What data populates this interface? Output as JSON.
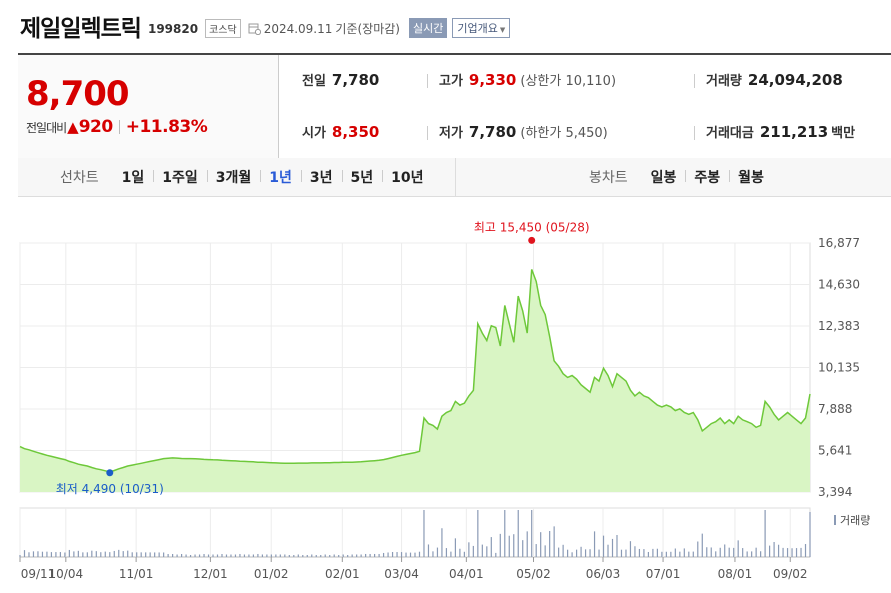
{
  "header": {
    "name": "제일일렉트릭",
    "code": "199820",
    "market": "코스닥",
    "date": "2024.09.11",
    "basis": "기준(장마감)",
    "realtime_label": "실시간",
    "company_label": "기업개요"
  },
  "summary": {
    "price": "8,700",
    "change_label": "전일대비",
    "change_amount": "920",
    "change_pct": "+11.83%",
    "prev_label": "전일",
    "prev_value": "7,780",
    "open_label": "시가",
    "open_value": "8,350",
    "high_label": "고가",
    "high_value": "9,330",
    "upper_limit_note": "(상한가 10,110)",
    "low_label": "저가",
    "low_value": "7,780",
    "lower_limit_note": "(하한가 5,450)",
    "volume_label": "거래량",
    "volume_value": "24,094,208",
    "amount_label": "거래대금",
    "amount_value": "211,213",
    "amount_unit": "백만"
  },
  "tabs": {
    "line_label": "선차트",
    "line_items": [
      "1일",
      "1주일",
      "3개월",
      "1년",
      "3년",
      "5년",
      "10년"
    ],
    "active": "1년",
    "candle_label": "봉차트",
    "candle_items": [
      "일봉",
      "주봉",
      "월봉"
    ]
  },
  "colors": {
    "up": "#d60000",
    "line": "#6ec83a",
    "fill": "#d9f5c4",
    "low": "#1a5cc8",
    "accent": "#2a5bd7"
  },
  "chart_data": {
    "type": "area",
    "y_ticks": [
      "16,877",
      "14,630",
      "12,383",
      "10,135",
      "7,888",
      "5,641",
      "3,394"
    ],
    "ylim": [
      3394,
      16877
    ],
    "x_ticks": [
      "09/11",
      "10/04",
      "11/01",
      "12/01",
      "01/02",
      "02/01",
      "03/04",
      "04/01",
      "05/02",
      "06/03",
      "07/01",
      "08/01",
      "09/02"
    ],
    "high_annotation": "최고 15,450 (05/28)",
    "low_annotation": "최저 4,490 (10/31)",
    "volume_label": "거래량",
    "series": [
      {
        "values": [
          5850,
          5740,
          5680,
          5600,
          5520,
          5450,
          5380,
          5320,
          5260,
          5200,
          5150,
          5050,
          4980,
          4900,
          4850,
          4800,
          4720,
          4650,
          4600,
          4540,
          4490,
          4560,
          4650,
          4720,
          4800,
          4850,
          4900,
          4950,
          5000,
          5050,
          5100,
          5150,
          5200,
          5220,
          5240,
          5230,
          5210,
          5200,
          5200,
          5190,
          5180,
          5160,
          5150,
          5140,
          5130,
          5110,
          5100,
          5090,
          5080,
          5060,
          5050,
          5040,
          5030,
          5010,
          5000,
          4990,
          4980,
          4970,
          4960,
          4950,
          4950,
          4950,
          4960,
          4960,
          4960,
          4970,
          4970,
          4970,
          4980,
          4980,
          4990,
          4990,
          5000,
          5000,
          5010,
          5020,
          5030,
          5050,
          5070,
          5090,
          5110,
          5150,
          5200,
          5260,
          5320,
          5380,
          5430,
          5480,
          5530,
          5600,
          7400,
          7100,
          7000,
          6800,
          7500,
          7700,
          7800,
          8300,
          8100,
          8200,
          8600,
          8900,
          12500,
          12000,
          11600,
          12400,
          12300,
          11300,
          13500,
          12500,
          11500,
          14000,
          13200,
          12000,
          15450,
          14800,
          13500,
          13000,
          11800,
          10500,
          10200,
          9800,
          9600,
          9700,
          9500,
          9200,
          9000,
          8800,
          9600,
          9400,
          10100,
          9700,
          9100,
          9800,
          9600,
          9400,
          8900,
          8600,
          8800,
          8600,
          8500,
          8300,
          8100,
          8000,
          8100,
          8000,
          7800,
          7900,
          7700,
          7600,
          7700,
          7300,
          6700,
          6900,
          7100,
          7200,
          7400,
          7100,
          7300,
          7100,
          7500,
          7300,
          7200,
          7100,
          6900,
          7000,
          8300,
          8000,
          7600,
          7300,
          7500,
          7700,
          7500,
          7300,
          7100,
          7400,
          8700
        ]
      }
    ]
  }
}
